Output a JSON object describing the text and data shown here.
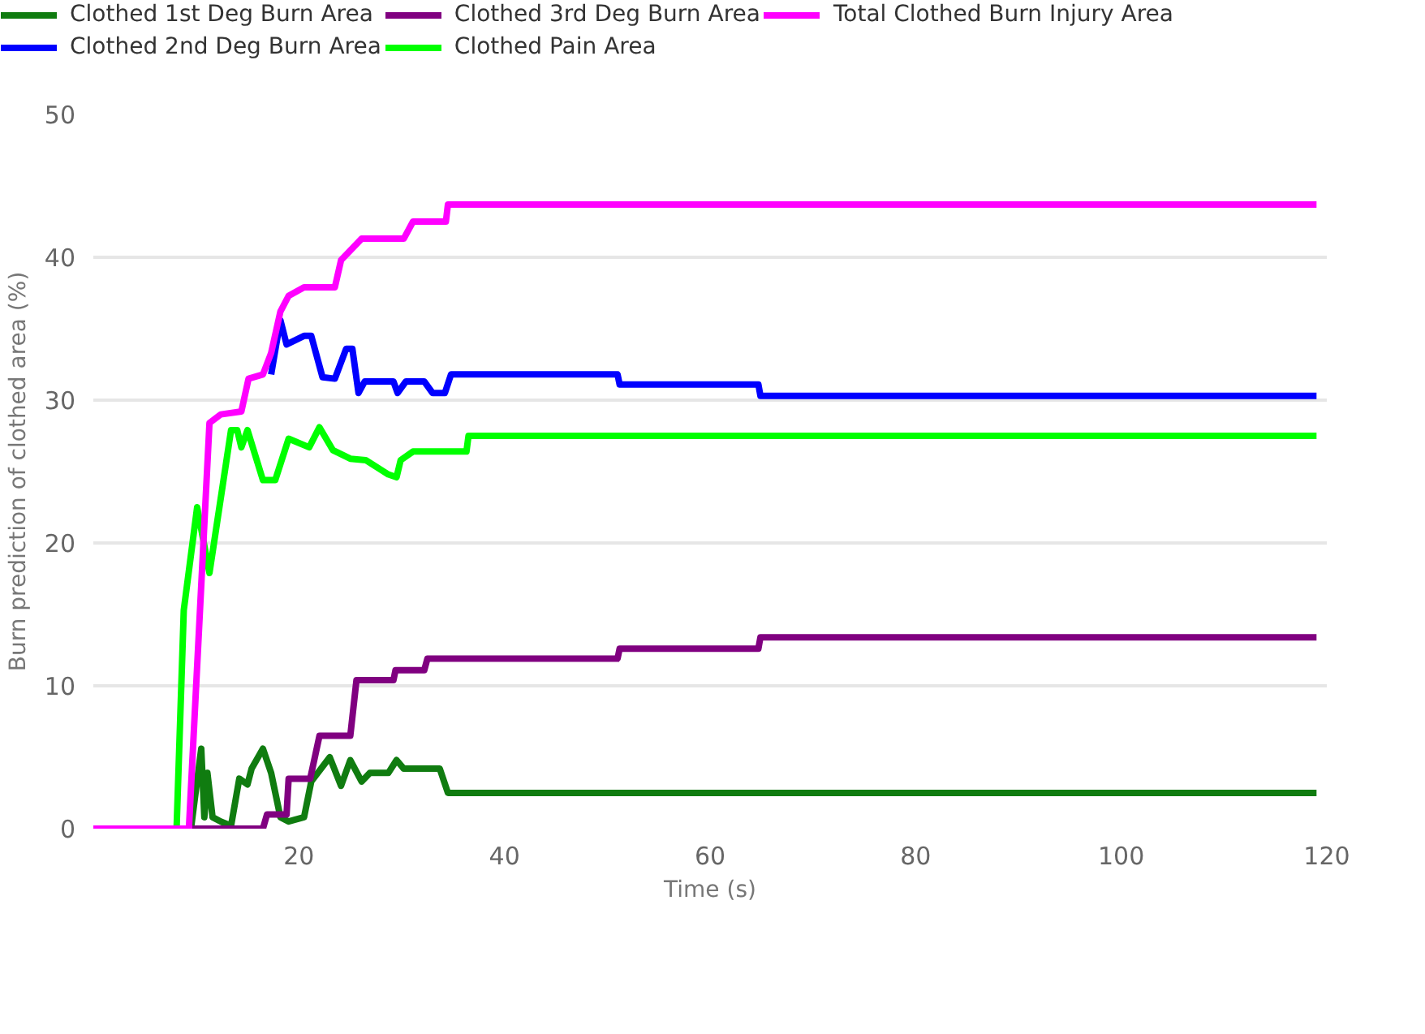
{
  "chart_data": {
    "type": "line",
    "xlabel": "Time (s)",
    "ylabel": "Burn prediction of clothed area (%)",
    "xlim": [
      0,
      120
    ],
    "ylim": [
      0,
      50
    ],
    "xticks": [
      20,
      40,
      60,
      80,
      100,
      120
    ],
    "yticks": [
      0,
      10,
      20,
      30,
      40,
      50
    ],
    "grid": "y",
    "legend": "top",
    "line_style": "solid",
    "series": [
      {
        "name": "Clothed 1st Deg Burn Area",
        "color": "#107c10",
        "x": [
          0,
          9.5,
          10.5,
          10.8,
          11.1,
          11.6,
          12.4,
          13.4,
          14.2,
          15,
          15.4,
          16.5,
          17.3,
          18.2,
          19,
          20.5,
          21.2,
          23,
          24.1,
          25,
          26.1,
          26.9,
          28.7,
          29.5,
          30.2,
          33.7,
          34.5,
          119
        ],
        "values": [
          0,
          0,
          5.6,
          0.8,
          3.9,
          0.8,
          0.5,
          0.2,
          3.5,
          3.1,
          4.2,
          5.6,
          3.9,
          0.8,
          0.5,
          0.8,
          3.3,
          5,
          3,
          4.8,
          3.3,
          3.9,
          3.9,
          4.8,
          4.2,
          4.2,
          2.5,
          2.5
        ]
      },
      {
        "name": "Clothed 2nd Deg Burn Area",
        "color": "#0000ff",
        "x": [
          17.3,
          18.2,
          18.8,
          20.5,
          21.2,
          22.3,
          23.5,
          24.6,
          25.2,
          25.8,
          26.4,
          29.2,
          29.6,
          30.4,
          32.2,
          33,
          34.2,
          34.8,
          51,
          51.2,
          64.7,
          64.9,
          119
        ],
        "values": [
          31.8,
          35.6,
          33.9,
          34.5,
          34.5,
          31.6,
          31.5,
          33.6,
          33.6,
          30.5,
          31.3,
          31.3,
          30.5,
          31.3,
          31.3,
          30.5,
          30.5,
          31.8,
          31.8,
          31.1,
          31.1,
          30.3,
          30.3
        ]
      },
      {
        "name": "Clothed 3rd Deg Burn Area",
        "color": "#800080",
        "x": [
          9.3,
          16.5,
          16.9,
          18.8,
          19,
          21.1,
          22,
          25,
          25.6,
          29.2,
          29.4,
          32.2,
          32.5,
          51,
          51.2,
          64.7,
          64.9,
          119
        ],
        "values": [
          0,
          0,
          1,
          1,
          3.5,
          3.5,
          6.5,
          6.5,
          10.4,
          10.4,
          11.1,
          11.1,
          11.9,
          11.9,
          12.6,
          12.6,
          13.4,
          13.4
        ]
      },
      {
        "name": "Clothed Pain Area",
        "color": "#00ff00",
        "x": [
          0,
          8.1,
          8.8,
          10.1,
          11.3,
          13.4,
          14,
          14.4,
          15,
          16.5,
          17.7,
          19,
          21,
          22,
          23.3,
          25,
          26.5,
          28.7,
          29.5,
          29.9,
          31.1,
          36.3,
          36.5,
          119
        ],
        "values": [
          0,
          0,
          15.3,
          22.5,
          17.9,
          27.9,
          27.9,
          26.7,
          27.9,
          24.4,
          24.4,
          27.3,
          26.7,
          28.1,
          26.5,
          25.9,
          25.8,
          24.8,
          24.6,
          25.8,
          26.4,
          26.4,
          27.5,
          27.5
        ]
      },
      {
        "name": "Total Clothed Burn Injury Area",
        "color": "#ff00ff",
        "x": [
          0,
          9.3,
          11.3,
          12.4,
          14.4,
          15.1,
          16.5,
          17.3,
          18.2,
          19,
          20.5,
          23.5,
          24.1,
          26.1,
          30.2,
          31.1,
          34.3,
          34.5,
          119
        ],
        "values": [
          0,
          0,
          28.4,
          29,
          29.2,
          31.5,
          31.8,
          33.3,
          36.2,
          37.3,
          37.9,
          37.9,
          39.8,
          41.3,
          41.3,
          42.5,
          42.5,
          43.7,
          43.7
        ]
      }
    ]
  }
}
